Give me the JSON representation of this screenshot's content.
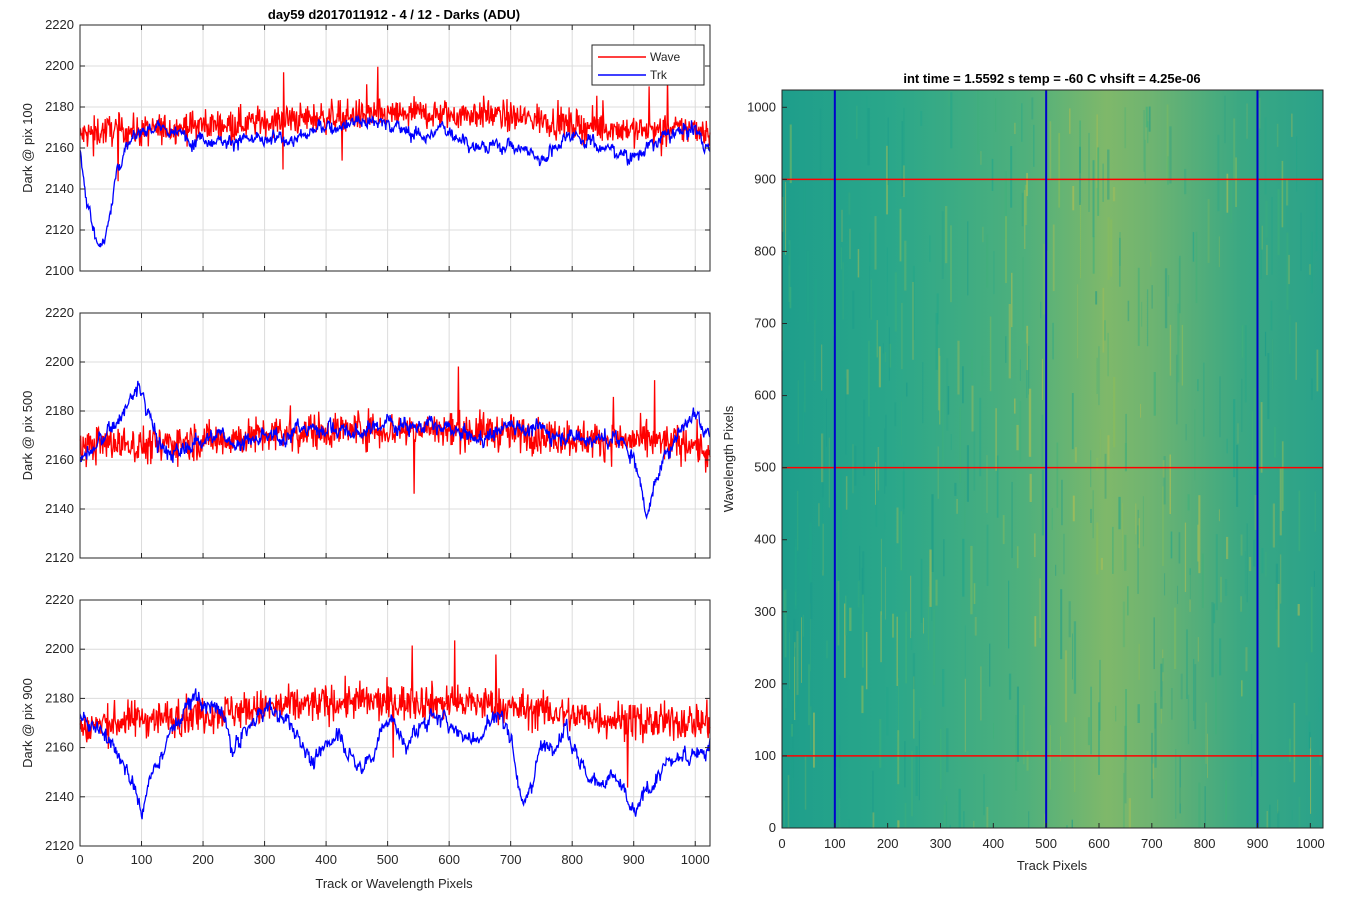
{
  "figure": {
    "left_title": "day59 d2017011912 - 4 / 12 - Darks (ADU)",
    "right_title": "int time = 1.5592 s    temp = -60 C    vhsift = 4.25e-06",
    "left_xlabel": "Track or Wavelength Pixels",
    "right_xlabel": "Track Pixels",
    "right_ylabel": "Wavelength Pixels"
  },
  "chart_data": [
    {
      "type": "line",
      "ylabel": "Dark @ pix 100",
      "xlim": [
        0,
        1024
      ],
      "ylim": [
        2100,
        2220
      ],
      "xticks": [
        0,
        100,
        200,
        300,
        400,
        500,
        600,
        700,
        800,
        900,
        1000
      ],
      "yticks": [
        2100,
        2120,
        2140,
        2160,
        2180,
        2200,
        2220
      ],
      "grid": true,
      "legend": "top-right",
      "series": [
        {
          "name": "Wave",
          "color": "#ff0000",
          "x": [
            0,
            50,
            100,
            150,
            200,
            250,
            300,
            350,
            400,
            450,
            500,
            550,
            600,
            650,
            700,
            750,
            800,
            850,
            900,
            950,
            1000,
            1024
          ],
          "values": [
            2166,
            2169,
            2168,
            2170,
            2171,
            2172,
            2173,
            2174,
            2175,
            2176,
            2176,
            2177,
            2176,
            2177,
            2175,
            2174,
            2171,
            2170,
            2169,
            2168,
            2170,
            2168
          ]
        },
        {
          "name": "Trk",
          "color": "#0000ff",
          "x": [
            0,
            10,
            20,
            30,
            40,
            50,
            60,
            70,
            80,
            100,
            130,
            160,
            200,
            250,
            300,
            350,
            400,
            450,
            500,
            550,
            600,
            650,
            700,
            750,
            800,
            850,
            900,
            950,
            1000,
            1024
          ],
          "values": [
            2158,
            2135,
            2125,
            2112,
            2115,
            2132,
            2150,
            2158,
            2162,
            2168,
            2170,
            2166,
            2165,
            2164,
            2163,
            2165,
            2170,
            2174,
            2172,
            2166,
            2169,
            2160,
            2162,
            2155,
            2168,
            2160,
            2156,
            2165,
            2170,
            2158
          ]
        }
      ]
    },
    {
      "type": "line",
      "ylabel": "Dark @ pix 500",
      "xlim": [
        0,
        1024
      ],
      "ylim": [
        2120,
        2220
      ],
      "xticks": [
        0,
        100,
        200,
        300,
        400,
        500,
        600,
        700,
        800,
        900,
        1000
      ],
      "yticks": [
        2120,
        2140,
        2160,
        2180,
        2200,
        2220
      ],
      "grid": true,
      "series": [
        {
          "name": "Wave",
          "color": "#ff0000",
          "x": [
            0,
            50,
            100,
            150,
            200,
            250,
            300,
            350,
            400,
            450,
            500,
            550,
            600,
            650,
            700,
            750,
            800,
            850,
            900,
            950,
            1000,
            1024
          ],
          "values": [
            2165,
            2167,
            2166,
            2167,
            2168,
            2169,
            2170,
            2171,
            2172,
            2173,
            2172,
            2173,
            2172,
            2172,
            2171,
            2170,
            2169,
            2168,
            2168,
            2167,
            2167,
            2160
          ]
        },
        {
          "name": "Trk",
          "color": "#0000ff",
          "x": [
            0,
            20,
            40,
            60,
            80,
            95,
            110,
            130,
            160,
            200,
            250,
            300,
            350,
            400,
            450,
            500,
            550,
            600,
            650,
            700,
            750,
            800,
            850,
            880,
            900,
            920,
            940,
            960,
            1000,
            1024
          ],
          "values": [
            2160,
            2163,
            2170,
            2176,
            2183,
            2190,
            2180,
            2165,
            2162,
            2170,
            2168,
            2168,
            2172,
            2174,
            2170,
            2176,
            2174,
            2172,
            2168,
            2175,
            2172,
            2170,
            2168,
            2168,
            2162,
            2140,
            2152,
            2168,
            2180,
            2172
          ]
        }
      ]
    },
    {
      "type": "line",
      "ylabel": "Dark @ pix 900",
      "xlim": [
        0,
        1024
      ],
      "ylim": [
        2120,
        2220
      ],
      "xticks": [
        0,
        100,
        200,
        300,
        400,
        500,
        600,
        700,
        800,
        900,
        1000
      ],
      "yticks": [
        2120,
        2140,
        2160,
        2180,
        2200,
        2220
      ],
      "grid": true,
      "series": [
        {
          "name": "Wave",
          "color": "#ff0000",
          "x": [
            0,
            50,
            100,
            150,
            200,
            250,
            300,
            350,
            400,
            450,
            500,
            550,
            600,
            650,
            700,
            750,
            800,
            850,
            900,
            950,
            1000,
            1024
          ],
          "values": [
            2168,
            2170,
            2172,
            2172,
            2174,
            2175,
            2176,
            2177,
            2178,
            2179,
            2178,
            2179,
            2178,
            2178,
            2176,
            2175,
            2173,
            2172,
            2171,
            2170,
            2171,
            2170
          ]
        },
        {
          "name": "Trk",
          "color": "#0000ff",
          "x": [
            0,
            30,
            60,
            80,
            100,
            120,
            150,
            190,
            230,
            250,
            270,
            300,
            330,
            360,
            380,
            420,
            450,
            480,
            500,
            530,
            570,
            600,
            640,
            680,
            700,
            720,
            750,
            790,
            830,
            870,
            900,
            920,
            950,
            980,
            1000,
            1024
          ],
          "values": [
            2172,
            2168,
            2160,
            2148,
            2134,
            2150,
            2168,
            2180,
            2174,
            2158,
            2166,
            2176,
            2172,
            2164,
            2152,
            2168,
            2150,
            2160,
            2172,
            2162,
            2172,
            2170,
            2162,
            2174,
            2166,
            2136,
            2160,
            2168,
            2146,
            2148,
            2132,
            2142,
            2152,
            2156,
            2158,
            2160
          ]
        }
      ]
    },
    {
      "type": "heatmap",
      "xlim": [
        0,
        1024
      ],
      "ylim": [
        0,
        1024
      ],
      "xticks": [
        0,
        100,
        200,
        300,
        400,
        500,
        600,
        700,
        800,
        900,
        1000
      ],
      "yticks": [
        0,
        100,
        200,
        300,
        400,
        500,
        600,
        700,
        800,
        900,
        1000
      ],
      "colormap": [
        "#1b9b8a",
        "#21a58a",
        "#3fb07a",
        "#8cbd5a",
        "#b7bf50"
      ],
      "vertical_markers": {
        "color": "#0000cc",
        "x": [
          100,
          500,
          900
        ]
      },
      "horizontal_markers": {
        "color": "#ff0000",
        "y": [
          100,
          500,
          900
        ]
      }
    }
  ]
}
